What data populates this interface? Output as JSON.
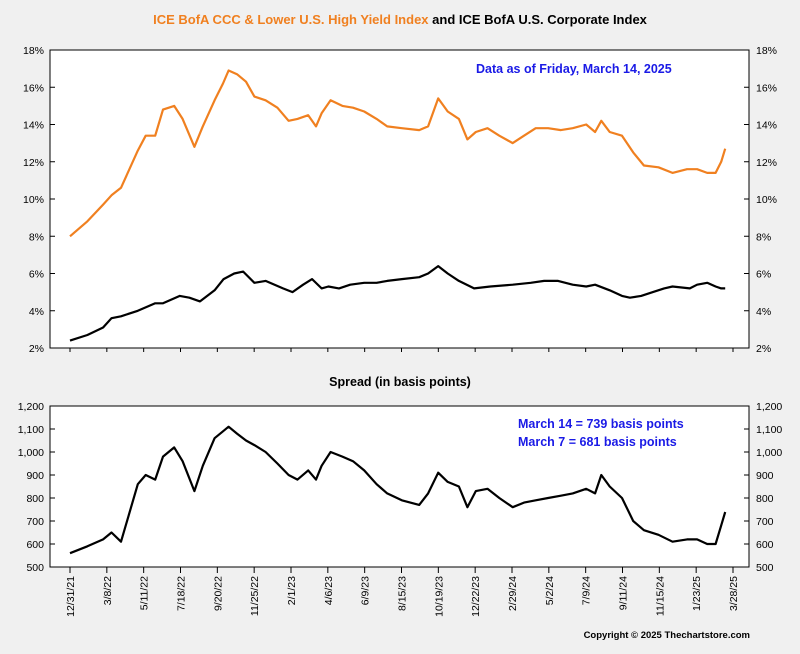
{
  "colors": {
    "hy": "#f08020",
    "ig": "#000000",
    "spread": "#000000",
    "note": "#1a1ae6",
    "background": "#f0f0f0"
  },
  "header": {
    "title_part1": "ICE BofA CCC & Lower U.S. High Yield Index",
    "title_part2": " and ICE BofA U.S. Corporate Index"
  },
  "top_panel": {
    "note": "Data as of Friday, March 14, 2025"
  },
  "bottom_panel": {
    "subtitle": "Spread (in basis points)",
    "note_line1": "March 14 = 739 basis points",
    "note_line2": "March 7 = 681 basis points"
  },
  "footer": {
    "copyright": "Copyright © 2025 Thechartstore.com"
  },
  "chart_data": [
    {
      "type": "line",
      "title": "ICE BofA CCC & Lower U.S. High Yield Index and ICE BofA U.S. Corporate Index",
      "ylim": [
        2,
        18
      ],
      "y_ticks": [
        "2%",
        "4%",
        "6%",
        "8%",
        "10%",
        "12%",
        "14%",
        "16%",
        "18%"
      ],
      "x_tick_labels": [
        "12/31/21",
        "3/8/22",
        "5/11/22",
        "7/18/22",
        "9/20/22",
        "11/25/22",
        "2/1/23",
        "4/6/23",
        "6/9/23",
        "8/15/23",
        "10/19/23",
        "12/22/23",
        "2/29/24",
        "5/2/24",
        "7/9/24",
        "9/11/24",
        "11/15/24",
        "1/23/25",
        "3/28/25"
      ],
      "x_range": [
        "2021-12-31",
        "2025-03-28"
      ],
      "series": [
        {
          "name": "ICE BofA CCC & Lower U.S. High Yield Index",
          "color": "#f08020",
          "x": [
            "2021-12-31",
            "2022-01-31",
            "2022-02-28",
            "2022-03-15",
            "2022-04-01",
            "2022-05-01",
            "2022-05-15",
            "2022-06-01",
            "2022-06-15",
            "2022-07-05",
            "2022-07-20",
            "2022-08-10",
            "2022-08-25",
            "2022-09-15",
            "2022-09-30",
            "2022-10-10",
            "2022-10-25",
            "2022-11-10",
            "2022-11-25",
            "2022-12-15",
            "2023-01-05",
            "2023-01-25",
            "2023-02-10",
            "2023-03-01",
            "2023-03-15",
            "2023-03-25",
            "2023-04-10",
            "2023-05-01",
            "2023-05-20",
            "2023-06-09",
            "2023-07-01",
            "2023-07-20",
            "2023-08-15",
            "2023-09-15",
            "2023-10-01",
            "2023-10-19",
            "2023-11-05",
            "2023-11-25",
            "2023-12-10",
            "2023-12-25",
            "2024-01-15",
            "2024-02-05",
            "2024-02-29",
            "2024-03-20",
            "2024-04-10",
            "2024-05-02",
            "2024-05-25",
            "2024-06-15",
            "2024-07-09",
            "2024-07-25",
            "2024-08-05",
            "2024-08-20",
            "2024-09-11",
            "2024-10-01",
            "2024-10-20",
            "2024-11-15",
            "2024-12-10",
            "2025-01-05",
            "2025-01-23",
            "2025-02-10",
            "2025-02-25",
            "2025-03-07",
            "2025-03-14"
          ],
          "y": [
            8.0,
            8.8,
            9.7,
            10.2,
            10.6,
            12.6,
            13.4,
            13.4,
            14.8,
            15.0,
            14.3,
            12.8,
            13.9,
            15.3,
            16.2,
            16.9,
            16.7,
            16.3,
            15.5,
            15.3,
            14.9,
            14.2,
            14.3,
            14.5,
            13.9,
            14.6,
            15.3,
            15.0,
            14.9,
            14.7,
            14.3,
            13.9,
            13.8,
            13.7,
            13.9,
            15.4,
            14.7,
            14.3,
            13.2,
            13.6,
            13.8,
            13.4,
            13.0,
            13.4,
            13.8,
            13.8,
            13.7,
            13.8,
            14.0,
            13.6,
            14.2,
            13.6,
            13.4,
            12.5,
            11.8,
            11.7,
            11.4,
            11.6,
            11.6,
            11.4,
            11.4,
            12.0,
            12.7
          ]
        },
        {
          "name": "ICE BofA U.S. Corporate Index",
          "color": "#000000",
          "x": [
            "2021-12-31",
            "2022-01-31",
            "2022-02-28",
            "2022-03-15",
            "2022-04-01",
            "2022-05-01",
            "2022-06-01",
            "2022-06-15",
            "2022-07-15",
            "2022-08-01",
            "2022-08-20",
            "2022-09-15",
            "2022-10-01",
            "2022-10-20",
            "2022-11-05",
            "2022-11-25",
            "2022-12-15",
            "2023-01-15",
            "2023-02-01",
            "2023-02-20",
            "2023-03-08",
            "2023-03-25",
            "2023-04-06",
            "2023-04-25",
            "2023-05-15",
            "2023-06-09",
            "2023-07-01",
            "2023-07-20",
            "2023-08-15",
            "2023-09-15",
            "2023-10-01",
            "2023-10-19",
            "2023-11-05",
            "2023-11-25",
            "2023-12-22",
            "2024-01-20",
            "2024-02-29",
            "2024-04-01",
            "2024-04-25",
            "2024-05-20",
            "2024-06-15",
            "2024-07-09",
            "2024-07-25",
            "2024-08-20",
            "2024-09-11",
            "2024-09-25",
            "2024-10-15",
            "2024-11-05",
            "2024-11-25",
            "2024-12-10",
            "2025-01-10",
            "2025-01-23",
            "2025-02-10",
            "2025-02-25",
            "2025-03-07",
            "2025-03-14"
          ],
          "y": [
            2.4,
            2.7,
            3.1,
            3.6,
            3.7,
            4.0,
            4.4,
            4.4,
            4.8,
            4.7,
            4.5,
            5.1,
            5.7,
            6.0,
            6.1,
            5.5,
            5.6,
            5.2,
            5.0,
            5.4,
            5.7,
            5.2,
            5.3,
            5.2,
            5.4,
            5.5,
            5.5,
            5.6,
            5.7,
            5.8,
            6.0,
            6.4,
            6.0,
            5.6,
            5.2,
            5.3,
            5.4,
            5.5,
            5.6,
            5.6,
            5.4,
            5.3,
            5.4,
            5.1,
            4.8,
            4.7,
            4.8,
            5.0,
            5.2,
            5.3,
            5.2,
            5.4,
            5.5,
            5.3,
            5.2,
            5.2
          ]
        }
      ]
    },
    {
      "type": "line",
      "title": "Spread (in basis points)",
      "ylim": [
        500,
        1200
      ],
      "y_ticks": [
        "500",
        "600",
        "700",
        "800",
        "900",
        "1,000",
        "1,100",
        "1,200"
      ],
      "x_tick_labels": [
        "12/31/21",
        "3/8/22",
        "5/11/22",
        "7/18/22",
        "9/20/22",
        "11/25/22",
        "2/1/23",
        "4/6/23",
        "6/9/23",
        "8/15/23",
        "10/19/23",
        "12/22/23",
        "2/29/24",
        "5/2/24",
        "7/9/24",
        "9/11/24",
        "11/15/24",
        "1/23/25",
        "3/28/25"
      ],
      "x_range": [
        "2021-12-31",
        "2025-03-28"
      ],
      "series": [
        {
          "color": "#000000",
          "x": [
            "2021-12-31",
            "2022-01-31",
            "2022-02-28",
            "2022-03-15",
            "2022-04-01",
            "2022-05-01",
            "2022-05-15",
            "2022-06-01",
            "2022-06-15",
            "2022-07-05",
            "2022-07-20",
            "2022-08-10",
            "2022-08-25",
            "2022-09-15",
            "2022-09-30",
            "2022-10-10",
            "2022-10-25",
            "2022-11-10",
            "2022-11-25",
            "2022-12-15",
            "2023-01-05",
            "2023-01-25",
            "2023-02-10",
            "2023-03-01",
            "2023-03-15",
            "2023-03-25",
            "2023-04-10",
            "2023-05-01",
            "2023-05-20",
            "2023-06-09",
            "2023-07-01",
            "2023-07-20",
            "2023-08-15",
            "2023-09-15",
            "2023-10-01",
            "2023-10-19",
            "2023-11-05",
            "2023-11-25",
            "2023-12-10",
            "2023-12-25",
            "2024-01-15",
            "2024-02-05",
            "2024-02-29",
            "2024-03-20",
            "2024-04-10",
            "2024-05-02",
            "2024-05-25",
            "2024-06-15",
            "2024-07-09",
            "2024-07-25",
            "2024-08-05",
            "2024-08-20",
            "2024-09-11",
            "2024-10-01",
            "2024-10-20",
            "2024-11-15",
            "2024-12-10",
            "2025-01-05",
            "2025-01-23",
            "2025-02-10",
            "2025-02-25",
            "2025-03-07",
            "2025-03-14"
          ],
          "y": [
            560,
            590,
            620,
            650,
            610,
            860,
            900,
            880,
            980,
            1020,
            960,
            830,
            940,
            1060,
            1090,
            1110,
            1080,
            1050,
            1030,
            1000,
            950,
            900,
            880,
            920,
            880,
            940,
            1000,
            980,
            960,
            920,
            860,
            820,
            790,
            770,
            820,
            910,
            870,
            850,
            760,
            830,
            840,
            800,
            760,
            780,
            790,
            800,
            810,
            820,
            840,
            820,
            900,
            850,
            800,
            700,
            660,
            640,
            610,
            620,
            620,
            600,
            600,
            681,
            739
          ]
        }
      ]
    }
  ]
}
